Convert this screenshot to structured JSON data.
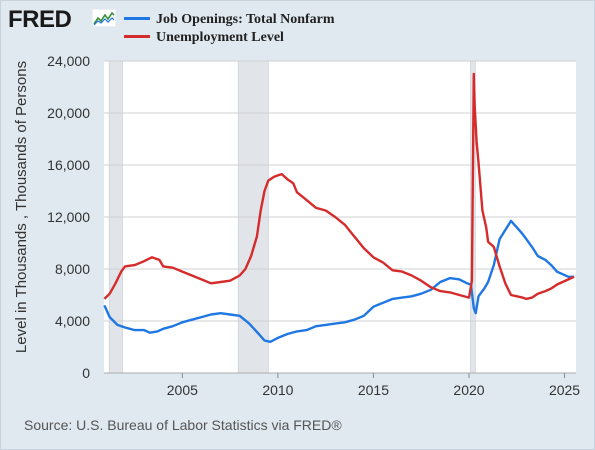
{
  "logo": {
    "text": "FRED"
  },
  "source": "Source: U.S. Bureau of Labor Statistics via FRED®",
  "colors": {
    "background": "#e1e9f0",
    "plot_background": "#ffffff",
    "recession": "#e1e5ea"
  },
  "chart_data": {
    "type": "line",
    "ylabel": "Level in Thousands , Thousands of Persons",
    "xlabel": "",
    "xlim": [
      2000.9,
      2025.6
    ],
    "ylim": [
      0,
      24000
    ],
    "yticks": [
      0,
      4000,
      8000,
      12000,
      16000,
      20000,
      24000
    ],
    "ytick_labels": [
      "0",
      "4,000",
      "8,000",
      "12,000",
      "16,000",
      "20,000",
      "24,000"
    ],
    "xticks": [
      2005,
      2010,
      2015,
      2020,
      2025
    ],
    "xtick_labels": [
      "2005",
      "2010",
      "2015",
      "2020",
      "2025"
    ],
    "grid": true,
    "legend_position": "top-left",
    "recessions": [
      [
        2001.17,
        2001.87
      ],
      [
        2007.92,
        2009.5
      ],
      [
        2020.08,
        2020.33
      ]
    ],
    "series": [
      {
        "name": "Job Openings: Total Nonfarm",
        "color": "#1f77e4",
        "x": [
          2000.92,
          2001.2,
          2001.6,
          2002.0,
          2002.5,
          2003.0,
          2003.3,
          2003.7,
          2004.0,
          2004.5,
          2005.0,
          2005.5,
          2006.0,
          2006.5,
          2007.0,
          2007.5,
          2008.0,
          2008.5,
          2009.0,
          2009.3,
          2009.6,
          2010.0,
          2010.5,
          2011.0,
          2011.5,
          2012.0,
          2012.5,
          2013.0,
          2013.5,
          2014.0,
          2014.5,
          2015.0,
          2015.5,
          2016.0,
          2016.5,
          2017.0,
          2017.5,
          2018.0,
          2018.5,
          2019.0,
          2019.5,
          2019.9,
          2020.1,
          2020.25,
          2020.35,
          2020.5,
          2020.8,
          2021.0,
          2021.3,
          2021.6,
          2021.9,
          2022.2,
          2022.5,
          2022.8,
          2023.0,
          2023.3,
          2023.6,
          2024.0,
          2024.3,
          2024.6,
          2024.9,
          2025.2,
          2025.5
        ],
        "y": [
          5200,
          4300,
          3700,
          3500,
          3300,
          3300,
          3100,
          3200,
          3400,
          3600,
          3900,
          4100,
          4300,
          4500,
          4600,
          4500,
          4400,
          3800,
          3000,
          2500,
          2400,
          2700,
          3000,
          3200,
          3300,
          3600,
          3700,
          3800,
          3900,
          4100,
          4400,
          5100,
          5400,
          5700,
          5800,
          5900,
          6100,
          6400,
          7000,
          7300,
          7200,
          6900,
          6800,
          5000,
          4600,
          5900,
          6500,
          7000,
          8300,
          10300,
          11000,
          11700,
          11200,
          10700,
          10300,
          9700,
          9000,
          8700,
          8300,
          7800,
          7600,
          7400,
          7400
        ]
      },
      {
        "name": "Unemployment Level",
        "color": "#d62b2b",
        "x": [
          2000.92,
          2001.2,
          2001.5,
          2001.8,
          2002.0,
          2002.5,
          2003.0,
          2003.4,
          2003.8,
          2004.0,
          2004.5,
          2005.0,
          2005.5,
          2006.0,
          2006.5,
          2007.0,
          2007.5,
          2008.0,
          2008.3,
          2008.6,
          2008.9,
          2009.1,
          2009.3,
          2009.5,
          2009.8,
          2010.0,
          2010.2,
          2010.5,
          2010.8,
          2011.0,
          2011.5,
          2012.0,
          2012.5,
          2013.0,
          2013.5,
          2014.0,
          2014.5,
          2015.0,
          2015.5,
          2016.0,
          2016.5,
          2017.0,
          2017.5,
          2018.0,
          2018.5,
          2019.0,
          2019.5,
          2020.0,
          2020.15,
          2020.25,
          2020.3,
          2020.4,
          2020.5,
          2020.7,
          2020.9,
          2021.0,
          2021.3,
          2021.6,
          2021.9,
          2022.2,
          2022.5,
          2022.8,
          2023.0,
          2023.3,
          2023.6,
          2024.0,
          2024.3,
          2024.6,
          2024.9,
          2025.2,
          2025.5
        ],
        "y": [
          5700,
          6100,
          6900,
          7800,
          8200,
          8300,
          8600,
          8900,
          8700,
          8200,
          8100,
          7800,
          7500,
          7200,
          6900,
          7000,
          7100,
          7500,
          8000,
          9000,
          10500,
          12500,
          14000,
          14800,
          15100,
          15200,
          15300,
          14900,
          14600,
          13900,
          13300,
          12700,
          12500,
          12000,
          11400,
          10500,
          9600,
          8900,
          8500,
          7900,
          7800,
          7500,
          7100,
          6600,
          6300,
          6200,
          6000,
          5800,
          7100,
          23000,
          20500,
          17800,
          16200,
          12500,
          11200,
          10100,
          9700,
          8200,
          6900,
          6000,
          5900,
          5800,
          5700,
          5800,
          6100,
          6300,
          6500,
          6800,
          7000,
          7200,
          7400
        ]
      }
    ]
  }
}
